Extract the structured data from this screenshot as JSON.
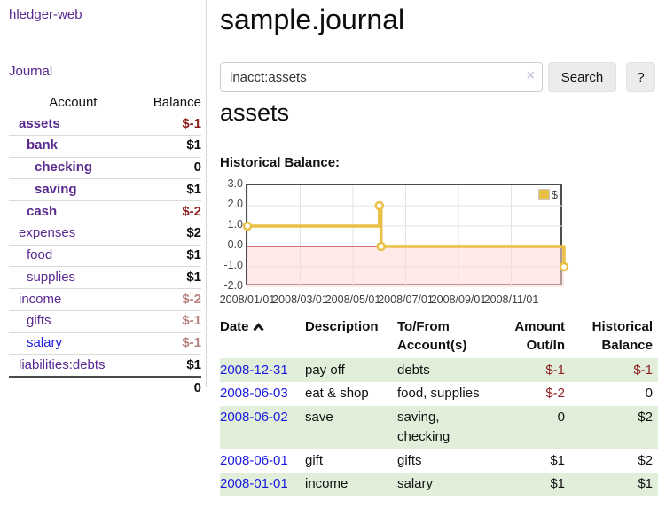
{
  "app": {
    "brand": "hledger-web",
    "nav_journal": "Journal"
  },
  "colors": {
    "purple_link": "#59298f",
    "blue_link": "#1b1be0",
    "negative": "#8f1f1f",
    "negative_muted": "#b98282",
    "row_green": "#e0eeda",
    "chart_gold": "#e9c044",
    "chart_negative_fill": "#ffd7d7",
    "chart_zero_line": "#a00000"
  },
  "sidebar": {
    "accounts_header": {
      "account": "Account",
      "balance": "Balance"
    },
    "rows": [
      {
        "name": "assets",
        "depth": 1,
        "bold": true,
        "balance": "$-1",
        "balance_style": "neg"
      },
      {
        "name": "bank",
        "depth": 2,
        "bold": true,
        "balance": "$1",
        "balance_style": "pos"
      },
      {
        "name": "checking",
        "depth": 3,
        "bold": true,
        "balance": "0",
        "balance_style": "pos"
      },
      {
        "name": "saving",
        "depth": 3,
        "bold": true,
        "balance": "$1",
        "balance_style": "pos"
      },
      {
        "name": "cash",
        "depth": 2,
        "bold": true,
        "balance": "$-2",
        "balance_style": "neg"
      },
      {
        "name": "expenses",
        "depth": 1,
        "bold": false,
        "balance": "$2",
        "balance_style": "pos"
      },
      {
        "name": "food",
        "depth": 2,
        "bold": false,
        "balance": "$1",
        "balance_style": "pos"
      },
      {
        "name": "supplies",
        "depth": 2,
        "bold": false,
        "balance": "$1",
        "balance_style": "pos"
      },
      {
        "name": "income",
        "depth": 1,
        "bold": false,
        "balance": "$-2",
        "balance_style": "neg-muted"
      },
      {
        "name": "gifts",
        "depth": 2,
        "bold": false,
        "balance": "$-1",
        "balance_style": "neg-muted"
      },
      {
        "name": "salary",
        "depth": 2,
        "bold": false,
        "balance": "$-1",
        "balance_style": "neg-muted",
        "link_color": "blue"
      },
      {
        "name": "liabilities:debts",
        "depth": 1,
        "bold": false,
        "balance": "$1",
        "balance_style": "pos"
      }
    ],
    "total": "0"
  },
  "header": {
    "title": "sample.journal"
  },
  "search": {
    "value": "inacct:assets",
    "clear_icon": "×",
    "button_label": "Search",
    "help_label": "?"
  },
  "account_page": {
    "heading": "assets",
    "chart_label": "Historical Balance:"
  },
  "chart_data": {
    "type": "line",
    "step": true,
    "title": "Historical Balance",
    "series": [
      {
        "name": "$",
        "color": "#e9c044",
        "points": [
          [
            "2008-01-01",
            1
          ],
          [
            "2008-06-01",
            2
          ],
          [
            "2008-06-03",
            0
          ],
          [
            "2008-12-31",
            -1
          ]
        ]
      }
    ],
    "xlim": [
      "2008-01-01",
      "2008-12-31"
    ],
    "ylim": [
      -2,
      3
    ],
    "y_ticks": [
      3,
      2,
      1,
      0,
      -1,
      -2
    ],
    "x_tick_labels": [
      "2008/01/01",
      "2008/03/01",
      "2008/05/01",
      "2008/07/01",
      "2008/09/01",
      "2008/11/01"
    ],
    "grid": true,
    "legend_position": "top-right",
    "negative_region_fill": "#ffd7d7",
    "zero_line_color": "#a00000"
  },
  "register": {
    "columns": [
      "Date",
      "Description",
      "To/From Account(s)",
      "Amount Out/In",
      "Historical Balance"
    ],
    "sort_icon": "chevron-up",
    "rows": [
      {
        "date": "2008-12-31",
        "description": "pay off",
        "accounts": "debts",
        "amount": "$-1",
        "balance": "$-1",
        "amount_neg": true,
        "balance_neg": true,
        "shaded": true
      },
      {
        "date": "2008-06-03",
        "description": "eat & shop",
        "accounts": "food, supplies",
        "amount": "$-2",
        "balance": "0",
        "amount_neg": true,
        "balance_neg": false,
        "shaded": false
      },
      {
        "date": "2008-06-02",
        "description": "save",
        "accounts": "saving,\nchecking",
        "amount": "0",
        "balance": "$2",
        "amount_neg": false,
        "balance_neg": false,
        "shaded": true
      },
      {
        "date": "2008-06-01",
        "description": "gift",
        "accounts": "gifts",
        "amount": "$1",
        "balance": "$2",
        "amount_neg": false,
        "balance_neg": false,
        "shaded": false
      },
      {
        "date": "2008-01-01",
        "description": "income",
        "accounts": "salary",
        "amount": "$1",
        "balance": "$1",
        "amount_neg": false,
        "balance_neg": false,
        "shaded": true
      }
    ]
  }
}
